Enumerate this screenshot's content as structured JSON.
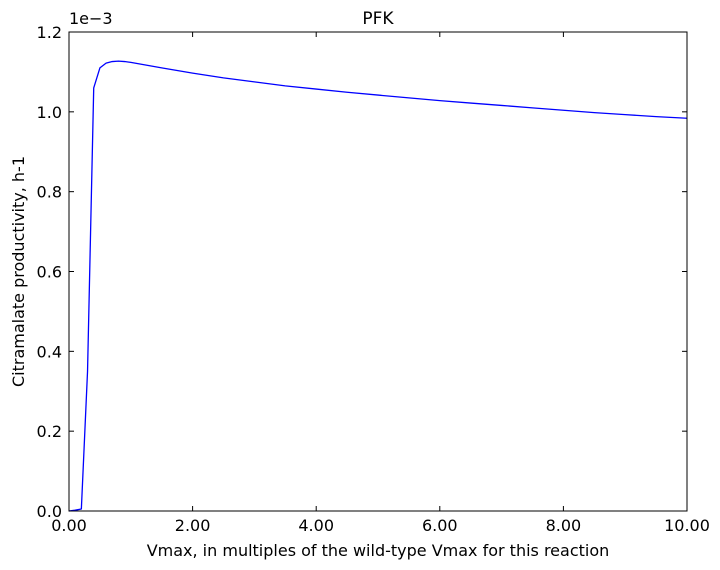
{
  "chart_data": {
    "type": "line",
    "title": "PFK",
    "xlabel": "Vmax, in multiples of the wild-type Vmax for this reaction",
    "ylabel": "Citramalate productivity, h-1",
    "y_offset_label": "1e−3",
    "xlim": [
      0,
      10
    ],
    "ylim": [
      0,
      1.2
    ],
    "x_ticks": [
      0,
      2,
      4,
      6,
      8,
      10
    ],
    "x_tick_labels": [
      "0.00",
      "2.00",
      "4.00",
      "6.00",
      "8.00",
      "10.00"
    ],
    "y_ticks": [
      0,
      0.2,
      0.4,
      0.6,
      0.8,
      1.0,
      1.2
    ],
    "y_tick_labels": [
      "0.0",
      "0.2",
      "0.4",
      "0.6",
      "0.8",
      "1.0",
      "1.2"
    ],
    "grid": false,
    "series": [
      {
        "color": "#0000ff",
        "x": [
          0,
          0.1,
          0.2,
          0.3,
          0.4,
          0.5,
          0.6,
          0.7,
          0.8,
          0.9,
          1.0,
          1.25,
          1.5,
          2.0,
          2.5,
          3.0,
          3.5,
          4.0,
          4.5,
          5.0,
          5.5,
          6.0,
          6.5,
          7.0,
          7.5,
          8.0,
          8.5,
          9.0,
          9.5,
          10.0
        ],
        "y": [
          0.0,
          0.002,
          0.005,
          0.35,
          1.06,
          1.11,
          1.122,
          1.126,
          1.127,
          1.126,
          1.124,
          1.117,
          1.11,
          1.097,
          1.085,
          1.075,
          1.065,
          1.057,
          1.049,
          1.042,
          1.035,
          1.028,
          1.022,
          1.016,
          1.01,
          1.004,
          0.998,
          0.993,
          0.988,
          0.984
        ]
      }
    ]
  }
}
